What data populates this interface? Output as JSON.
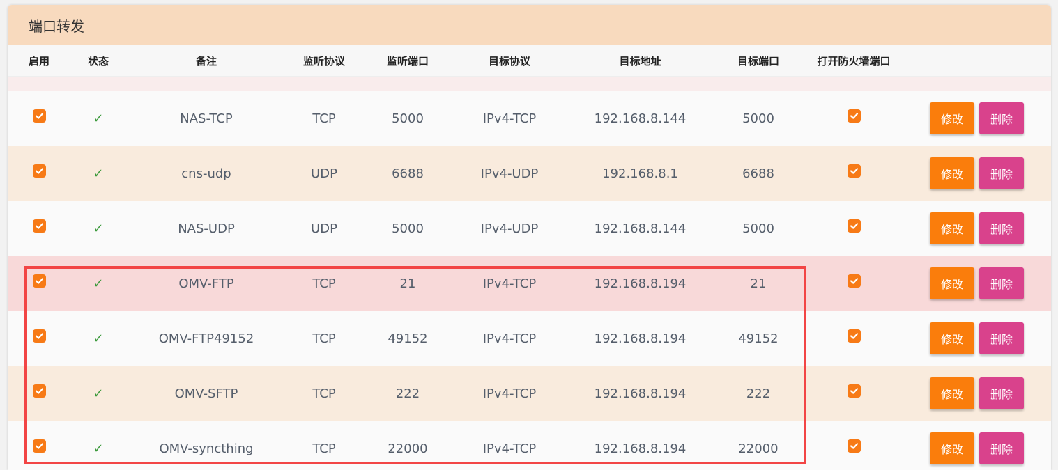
{
  "panel": {
    "title": "端口转发"
  },
  "columns": [
    "启用",
    "状态",
    "备注",
    "监听协议",
    "监听端口",
    "目标协议",
    "目标地址",
    "目标端口",
    "打开防火墙端口"
  ],
  "buttons": {
    "edit": "修改",
    "delete": "删除"
  },
  "status_symbol": "✓",
  "rows": [
    {
      "note": "NAS-TCP",
      "listen_proto": "TCP",
      "listen_port": "5000",
      "target_proto": "IPv4-TCP",
      "target_addr": "192.168.8.144",
      "target_port": "5000",
      "style": "odd"
    },
    {
      "note": "cns-udp",
      "listen_proto": "UDP",
      "listen_port": "6688",
      "target_proto": "IPv4-UDP",
      "target_addr": "192.168.8.1",
      "target_port": "6688",
      "style": "even"
    },
    {
      "note": "NAS-UDP",
      "listen_proto": "UDP",
      "listen_port": "5000",
      "target_proto": "IPv4-UDP",
      "target_addr": "192.168.8.144",
      "target_port": "5000",
      "style": "odd"
    },
    {
      "note": "OMV-FTP",
      "listen_proto": "TCP",
      "listen_port": "21",
      "target_proto": "IPv4-TCP",
      "target_addr": "192.168.8.194",
      "target_port": "21",
      "style": "hl"
    },
    {
      "note": "OMV-FTP49152",
      "listen_proto": "TCP",
      "listen_port": "49152",
      "target_proto": "IPv4-TCP",
      "target_addr": "192.168.8.194",
      "target_port": "49152",
      "style": "odd"
    },
    {
      "note": "OMV-SFTP",
      "listen_proto": "TCP",
      "listen_port": "222",
      "target_proto": "IPv4-TCP",
      "target_addr": "192.168.8.194",
      "target_port": "222",
      "style": "even"
    },
    {
      "note": "OMV-syncthing",
      "listen_proto": "TCP",
      "listen_port": "22000",
      "target_proto": "IPv4-TCP",
      "target_addr": "192.168.8.194",
      "target_port": "22000",
      "style": "odd"
    }
  ],
  "colors": {
    "accent": "#fa7d0c",
    "delete": "#d9428c",
    "header_bg": "#f8dabe",
    "highlight_border": "#f24545"
  }
}
